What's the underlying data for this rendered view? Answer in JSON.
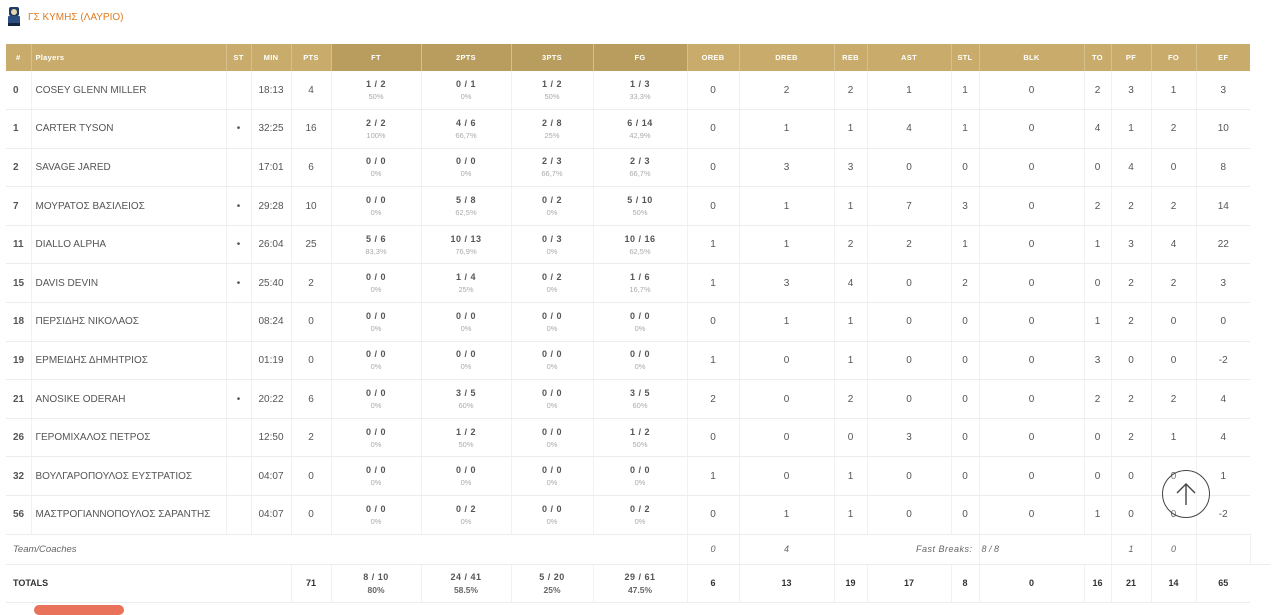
{
  "team": {
    "name": "ΓΣ ΚΥΜΗΣ (ΛΑΥΡΙΟ)",
    "logo_icon": "team-logo-icon"
  },
  "columns": [
    "#",
    "Players",
    "ST",
    "MIN",
    "PTS",
    "FT",
    "2PTS",
    "3PTS",
    "FG",
    "OREB",
    "DREB",
    "REB",
    "AST",
    "STL",
    "BLK",
    "TO",
    "PF",
    "FO",
    "EF"
  ],
  "players": [
    {
      "num": "0",
      "name": "COSEY GLENN MILLER",
      "st": "",
      "min": "18:13",
      "pts": "4",
      "ft": {
        "m": "1 / 2",
        "p": "50%"
      },
      "p2": {
        "m": "0 / 1",
        "p": "0%"
      },
      "p3": {
        "m": "1 / 2",
        "p": "50%"
      },
      "fg": {
        "m": "1 / 3",
        "p": "33,3%"
      },
      "oreb": "0",
      "dreb": "2",
      "reb": "2",
      "ast": "1",
      "stl": "1",
      "blk": "0",
      "to": "2",
      "pf": "3",
      "fo": "1",
      "ef": "3"
    },
    {
      "num": "1",
      "name": "CARTER TYSON",
      "st": "•",
      "min": "32:25",
      "pts": "16",
      "ft": {
        "m": "2 / 2",
        "p": "100%"
      },
      "p2": {
        "m": "4 / 6",
        "p": "66,7%"
      },
      "p3": {
        "m": "2 / 8",
        "p": "25%"
      },
      "fg": {
        "m": "6 / 14",
        "p": "42,9%"
      },
      "oreb": "0",
      "dreb": "1",
      "reb": "1",
      "ast": "4",
      "stl": "1",
      "blk": "0",
      "to": "4",
      "pf": "1",
      "fo": "2",
      "ef": "10"
    },
    {
      "num": "2",
      "name": "SAVAGE JARED",
      "st": "",
      "min": "17:01",
      "pts": "6",
      "ft": {
        "m": "0 / 0",
        "p": "0%"
      },
      "p2": {
        "m": "0 / 0",
        "p": "0%"
      },
      "p3": {
        "m": "2 / 3",
        "p": "66,7%"
      },
      "fg": {
        "m": "2 / 3",
        "p": "66,7%"
      },
      "oreb": "0",
      "dreb": "3",
      "reb": "3",
      "ast": "0",
      "stl": "0",
      "blk": "0",
      "to": "0",
      "pf": "4",
      "fo": "0",
      "ef": "8"
    },
    {
      "num": "7",
      "name": "ΜΟΥΡΑΤΟΣ ΒΑΣΙΛΕΙΟΣ",
      "st": "•",
      "min": "29:28",
      "pts": "10",
      "ft": {
        "m": "0 / 0",
        "p": "0%"
      },
      "p2": {
        "m": "5 / 8",
        "p": "62,5%"
      },
      "p3": {
        "m": "0 / 2",
        "p": "0%"
      },
      "fg": {
        "m": "5 / 10",
        "p": "50%"
      },
      "oreb": "0",
      "dreb": "1",
      "reb": "1",
      "ast": "7",
      "stl": "3",
      "blk": "0",
      "to": "2",
      "pf": "2",
      "fo": "2",
      "ef": "14"
    },
    {
      "num": "11",
      "name": "DIALLO ALPHA",
      "st": "•",
      "min": "26:04",
      "pts": "25",
      "ft": {
        "m": "5 / 6",
        "p": "83,3%"
      },
      "p2": {
        "m": "10 / 13",
        "p": "76,9%"
      },
      "p3": {
        "m": "0 / 3",
        "p": "0%"
      },
      "fg": {
        "m": "10 / 16",
        "p": "62,5%"
      },
      "oreb": "1",
      "dreb": "1",
      "reb": "2",
      "ast": "2",
      "stl": "1",
      "blk": "0",
      "to": "1",
      "pf": "3",
      "fo": "4",
      "ef": "22"
    },
    {
      "num": "15",
      "name": "DAVIS DEVIN",
      "st": "•",
      "min": "25:40",
      "pts": "2",
      "ft": {
        "m": "0 / 0",
        "p": "0%"
      },
      "p2": {
        "m": "1 / 4",
        "p": "25%"
      },
      "p3": {
        "m": "0 / 2",
        "p": "0%"
      },
      "fg": {
        "m": "1 / 6",
        "p": "16,7%"
      },
      "oreb": "1",
      "dreb": "3",
      "reb": "4",
      "ast": "0",
      "stl": "2",
      "blk": "0",
      "to": "0",
      "pf": "2",
      "fo": "2",
      "ef": "3"
    },
    {
      "num": "18",
      "name": "ΠΕΡΣΙΔΗΣ ΝΙΚΟΛΑΟΣ",
      "st": "",
      "min": "08:24",
      "pts": "0",
      "ft": {
        "m": "0 / 0",
        "p": "0%"
      },
      "p2": {
        "m": "0 / 0",
        "p": "0%"
      },
      "p3": {
        "m": "0 / 0",
        "p": "0%"
      },
      "fg": {
        "m": "0 / 0",
        "p": "0%"
      },
      "oreb": "0",
      "dreb": "1",
      "reb": "1",
      "ast": "0",
      "stl": "0",
      "blk": "0",
      "to": "1",
      "pf": "2",
      "fo": "0",
      "ef": "0"
    },
    {
      "num": "19",
      "name": "ΕΡΜΕΙΔΗΣ ΔΗΜΗΤΡΙΟΣ",
      "st": "",
      "min": "01:19",
      "pts": "0",
      "ft": {
        "m": "0 / 0",
        "p": "0%"
      },
      "p2": {
        "m": "0 / 0",
        "p": "0%"
      },
      "p3": {
        "m": "0 / 0",
        "p": "0%"
      },
      "fg": {
        "m": "0 / 0",
        "p": "0%"
      },
      "oreb": "1",
      "dreb": "0",
      "reb": "1",
      "ast": "0",
      "stl": "0",
      "blk": "0",
      "to": "3",
      "pf": "0",
      "fo": "0",
      "ef": "-2"
    },
    {
      "num": "21",
      "name": "ANOSIKE ODERAH",
      "st": "•",
      "min": "20:22",
      "pts": "6",
      "ft": {
        "m": "0 / 0",
        "p": "0%"
      },
      "p2": {
        "m": "3 / 5",
        "p": "60%"
      },
      "p3": {
        "m": "0 / 0",
        "p": "0%"
      },
      "fg": {
        "m": "3 / 5",
        "p": "60%"
      },
      "oreb": "2",
      "dreb": "0",
      "reb": "2",
      "ast": "0",
      "stl": "0",
      "blk": "0",
      "to": "2",
      "pf": "2",
      "fo": "2",
      "ef": "4"
    },
    {
      "num": "26",
      "name": "ΓΕΡΟΜΙΧΑΛΟΣ ΠΕΤΡΟΣ",
      "st": "",
      "min": "12:50",
      "pts": "2",
      "ft": {
        "m": "0 / 0",
        "p": "0%"
      },
      "p2": {
        "m": "1 / 2",
        "p": "50%"
      },
      "p3": {
        "m": "0 / 0",
        "p": "0%"
      },
      "fg": {
        "m": "1 / 2",
        "p": "50%"
      },
      "oreb": "0",
      "dreb": "0",
      "reb": "0",
      "ast": "3",
      "stl": "0",
      "blk": "0",
      "to": "0",
      "pf": "2",
      "fo": "1",
      "ef": "4"
    },
    {
      "num": "32",
      "name": "ΒΟΥΛΓΑΡΟΠΟΥΛΟΣ ΕΥΣΤΡΑΤΙΟΣ",
      "st": "",
      "min": "04:07",
      "pts": "0",
      "ft": {
        "m": "0 / 0",
        "p": "0%"
      },
      "p2": {
        "m": "0 / 0",
        "p": "0%"
      },
      "p3": {
        "m": "0 / 0",
        "p": "0%"
      },
      "fg": {
        "m": "0 / 0",
        "p": "0%"
      },
      "oreb": "1",
      "dreb": "0",
      "reb": "1",
      "ast": "0",
      "stl": "0",
      "blk": "0",
      "to": "0",
      "pf": "0",
      "fo": "0",
      "ef": "1"
    },
    {
      "num": "56",
      "name": "ΜΑΣΤΡΟΓΙΑΝΝΟΠΟΥΛΟΣ ΣΑΡΑΝΤΗΣ",
      "st": "",
      "min": "04:07",
      "pts": "0",
      "ft": {
        "m": "0 / 0",
        "p": "0%"
      },
      "p2": {
        "m": "0 / 2",
        "p": "0%"
      },
      "p3": {
        "m": "0 / 0",
        "p": "0%"
      },
      "fg": {
        "m": "0 / 2",
        "p": "0%"
      },
      "oreb": "0",
      "dreb": "1",
      "reb": "1",
      "ast": "0",
      "stl": "0",
      "blk": "0",
      "to": "1",
      "pf": "0",
      "fo": "0",
      "ef": "-2"
    }
  ],
  "team_row": {
    "label": "Team/Coaches",
    "oreb": "0",
    "dreb": "4",
    "fast_breaks_label": "Fast Breaks:",
    "fast_breaks_value": "8 / 8",
    "to": "1",
    "pf": "0"
  },
  "totals": {
    "label": "TOTALS",
    "pts": "71",
    "ft": {
      "m": "8 / 10",
      "p": "80%"
    },
    "p2": {
      "m": "24 / 41",
      "p": "58.5%"
    },
    "p3": {
      "m": "5 / 20",
      "p": "25%"
    },
    "fg": {
      "m": "29 / 61",
      "p": "47.5%"
    },
    "oreb": "6",
    "dreb": "13",
    "reb": "19",
    "ast": "17",
    "stl": "8",
    "blk": "0",
    "to": "16",
    "pf": "21",
    "fo": "14",
    "ef": "65"
  },
  "scroll_top_icon": "arrow-up-icon",
  "colors": {
    "header_bg": "#c9ac6c",
    "header_highlight": "#b99d5e",
    "team_name": "#e07a1f",
    "pill": "#e8735a"
  }
}
